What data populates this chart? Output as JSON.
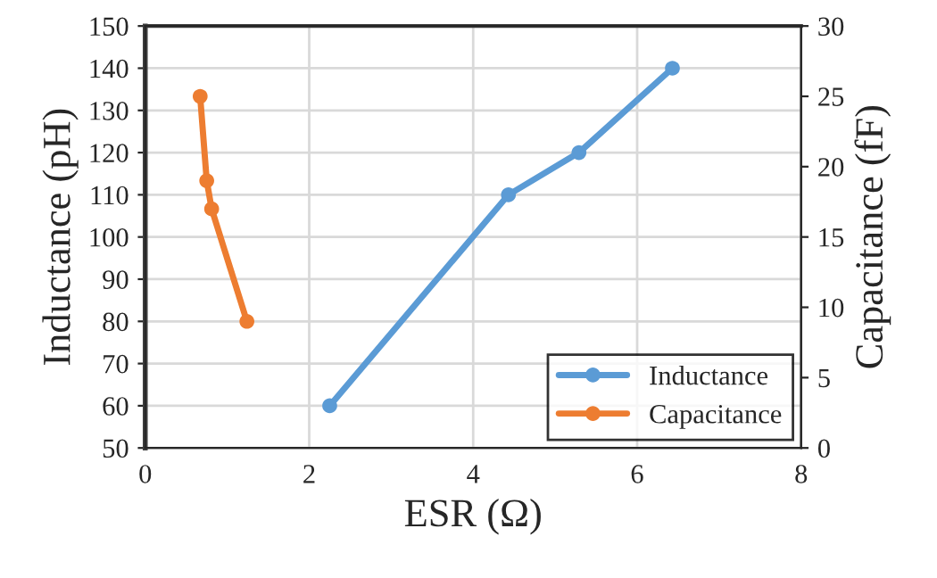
{
  "chart_data": {
    "type": "line",
    "xlabel": "ESR (Ω)",
    "ylabel": "Inductance (pH)",
    "y2label": "Capacitance (fF)",
    "series": [
      {
        "name": "Inductance",
        "color": "#5b9bd5",
        "x": [
          2.25,
          4.43,
          5.29,
          6.43
        ],
        "values": [
          60,
          110,
          120,
          140
        ]
      },
      {
        "name": "Capacitance",
        "color": "#ed7d31",
        "axis": "y2",
        "x": [
          0.67,
          0.75,
          0.81,
          1.24
        ],
        "values": [
          25.0,
          19.0,
          17.0,
          9.0
        ]
      }
    ],
    "xlim": [
      0,
      8
    ],
    "xticks": [
      0,
      2,
      4,
      6,
      8
    ],
    "ylim": [
      50,
      150
    ],
    "yticks": [
      50,
      60,
      70,
      80,
      90,
      100,
      110,
      120,
      130,
      140,
      150
    ],
    "y2lim": [
      0,
      30
    ],
    "y2ticks": [
      0,
      5,
      10,
      15,
      20,
      25,
      30
    ],
    "grid": true,
    "legend": "bottom right",
    "marker": "circle",
    "line_style": "solid"
  }
}
